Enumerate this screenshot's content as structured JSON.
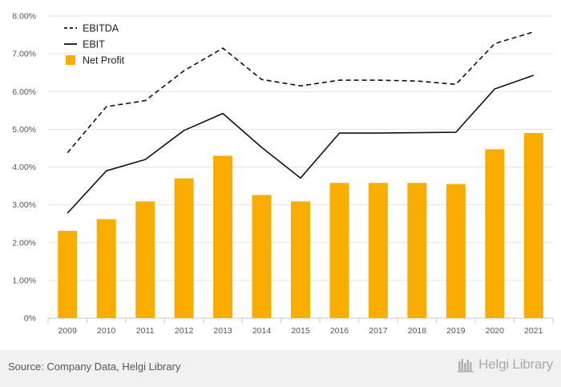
{
  "chart_data": {
    "type": "bar",
    "categories": [
      "2009",
      "2010",
      "2011",
      "2012",
      "2013",
      "2014",
      "2015",
      "2016",
      "2017",
      "2018",
      "2019",
      "2020",
      "2021"
    ],
    "series": [
      {
        "name": "Net Profit",
        "kind": "bar",
        "color": "#f9ad00",
        "values": [
          2.31,
          2.62,
          3.09,
          3.7,
          4.3,
          3.26,
          3.09,
          3.58,
          3.58,
          3.58,
          3.55,
          4.47,
          4.9
        ]
      },
      {
        "name": "EBIT",
        "kind": "line",
        "color": "#111111",
        "dash": "solid",
        "values": [
          2.78,
          3.9,
          4.2,
          4.97,
          5.42,
          4.52,
          3.71,
          4.9,
          4.9,
          4.91,
          4.92,
          6.07,
          6.43
        ]
      },
      {
        "name": "EBITDA",
        "kind": "line",
        "color": "#111111",
        "dash": "dashed",
        "values": [
          4.38,
          5.6,
          5.76,
          6.55,
          7.15,
          6.32,
          6.15,
          6.3,
          6.3,
          6.28,
          6.19,
          7.27,
          7.58
        ]
      }
    ],
    "y_ticks": [
      "0%",
      "1.00%",
      "2.00%",
      "3.00%",
      "4.00%",
      "5.00%",
      "6.00%",
      "7.00%",
      "8.00%"
    ],
    "ylim": [
      0,
      8
    ],
    "grid": true,
    "legend_position": "top-left",
    "legend_order": [
      "EBITDA",
      "EBIT",
      "Net Profit"
    ]
  },
  "footer": {
    "source": "Source: Company Data, Helgi Library",
    "brand": "Helgi Library"
  }
}
